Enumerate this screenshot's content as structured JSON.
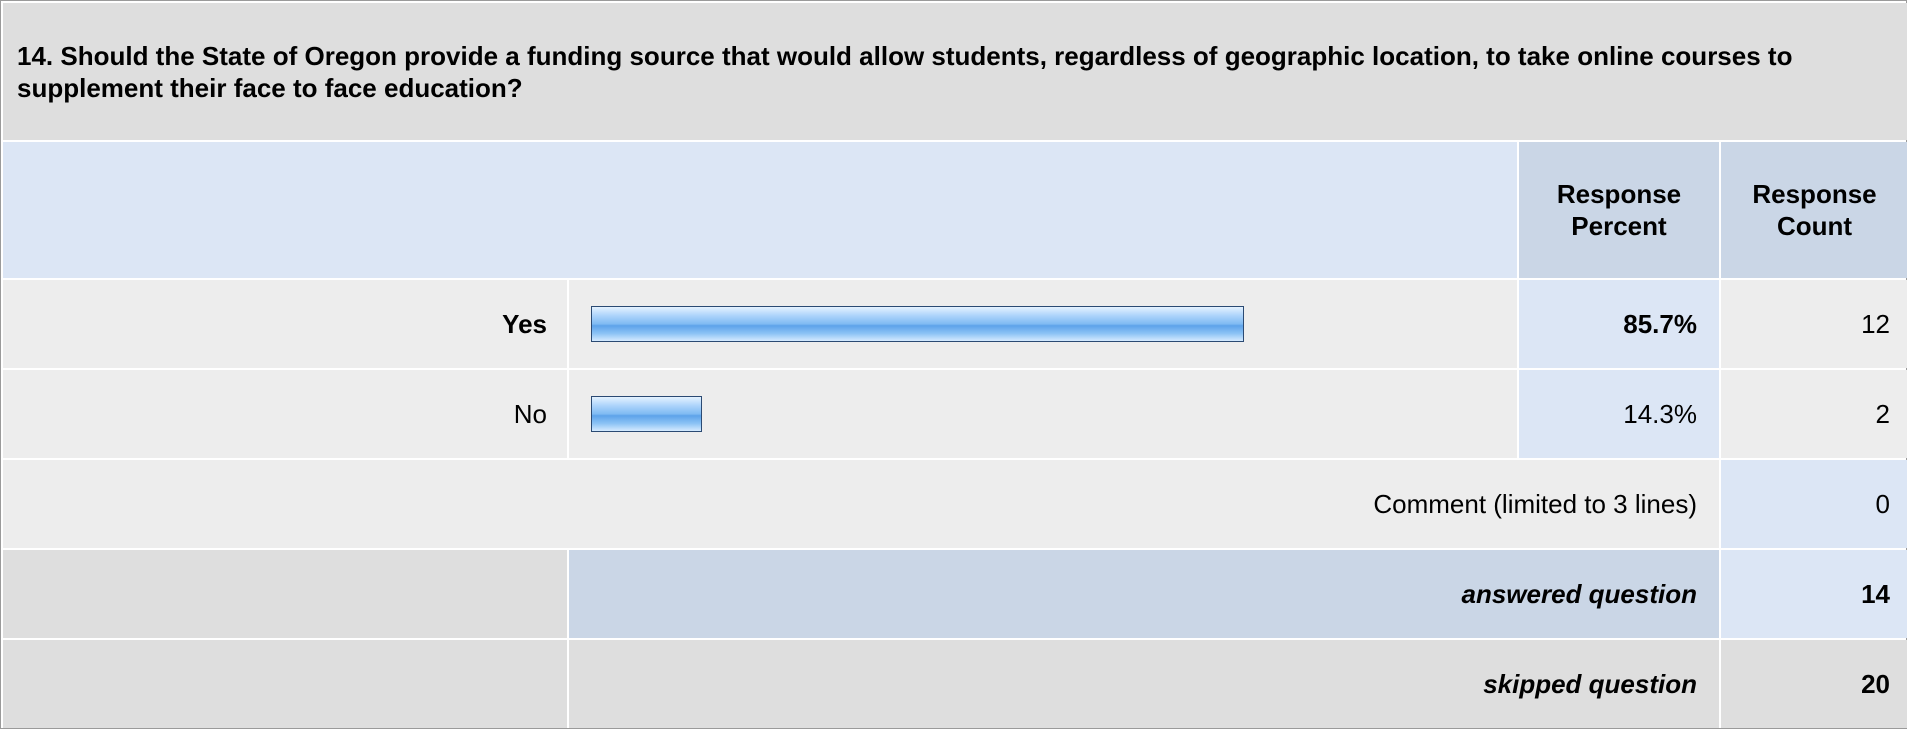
{
  "question": "14. Should the State of Oregon provide a funding source that would allow students, regardless of geographic location, to take online courses to supplement their face to face education?",
  "headers": {
    "percent": "Response Percent",
    "count": "Response Count"
  },
  "chart_data": {
    "type": "bar",
    "orientation": "horizontal",
    "categories": [
      "Yes",
      "No"
    ],
    "series": [
      {
        "values": [
          85.7,
          14.3
        ]
      }
    ],
    "percent_labels": [
      "85.7%",
      "14.3%"
    ],
    "counts": [
      12,
      2
    ],
    "xlim": [
      0,
      100
    ]
  },
  "comment": {
    "label": "Comment (limited to 3 lines)",
    "count": "0"
  },
  "summary": {
    "answered_label": "answered question",
    "answered_count": "14",
    "skipped_label": "skipped question",
    "skipped_count": "20"
  },
  "colors": {
    "bar_fill": "#7fbaf3",
    "bar_border": "#2b4a73",
    "header_bg": "#cad6e6",
    "light_blue_bg": "#dce6f5",
    "gray_bg": "#ededed"
  }
}
